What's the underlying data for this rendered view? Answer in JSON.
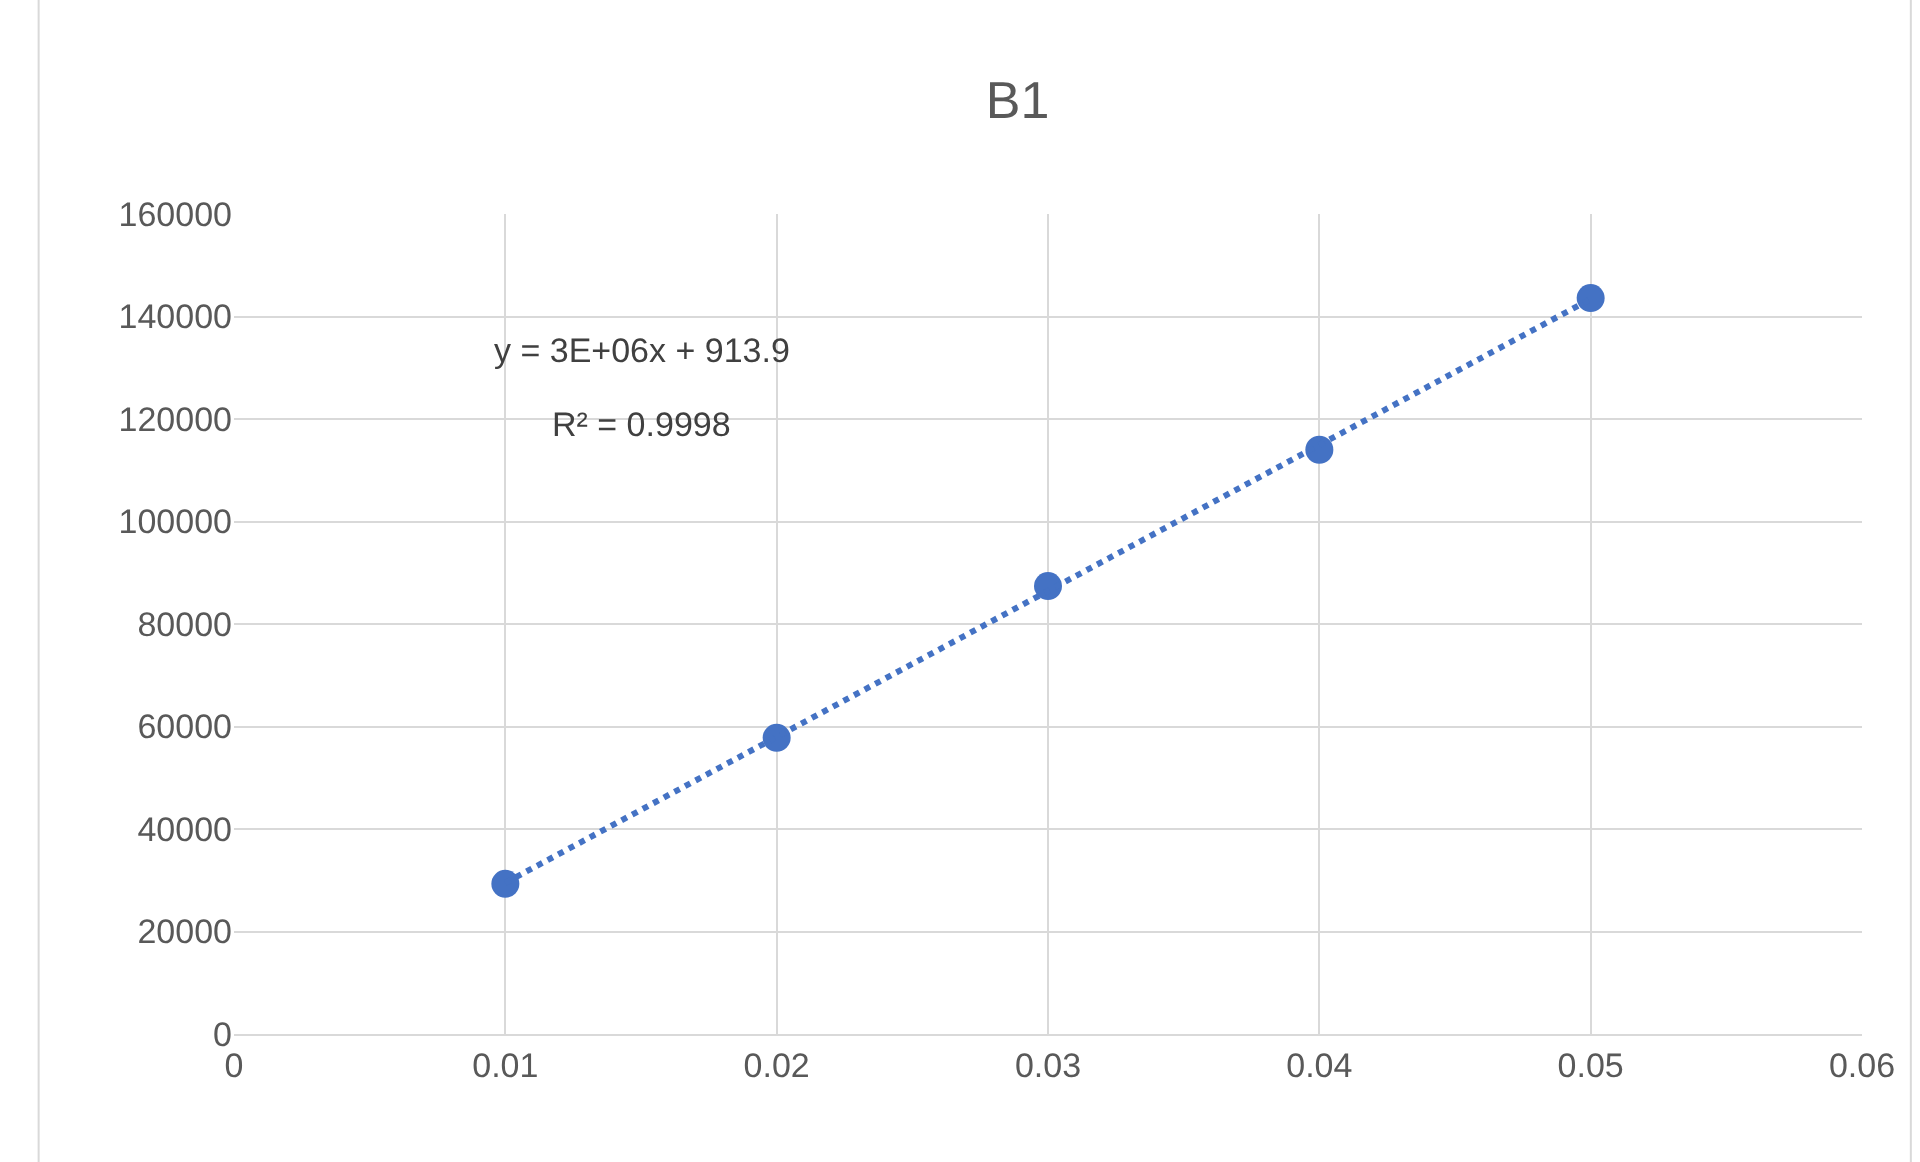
{
  "chart_data": {
    "type": "scatter",
    "title": "B1",
    "x": [
      0.01,
      0.02,
      0.03,
      0.04,
      0.05
    ],
    "series": [
      {
        "color": "#4472c4",
        "values": [
          29300,
          57800,
          87400,
          114000,
          143600
        ],
        "marker": "circle"
      },
      {
        "type": "line",
        "color": "#4472c4",
        "x": [
          0.01,
          0.05
        ],
        "values": [
          29500,
          143400
        ],
        "line_style": "dotted",
        "marker": "none"
      }
    ],
    "annotations": [
      "y = 3E+06x + 913.9",
      "R² = 0.9998"
    ],
    "xlim": [
      0,
      0.06
    ],
    "xticks": [
      0,
      0.01,
      0.02,
      0.03,
      0.04,
      0.05,
      0.06
    ],
    "ylim": [
      0,
      160000
    ],
    "yticks": [
      0,
      20000,
      40000,
      60000,
      80000,
      100000,
      120000,
      140000,
      160000
    ],
    "grid": true
  }
}
